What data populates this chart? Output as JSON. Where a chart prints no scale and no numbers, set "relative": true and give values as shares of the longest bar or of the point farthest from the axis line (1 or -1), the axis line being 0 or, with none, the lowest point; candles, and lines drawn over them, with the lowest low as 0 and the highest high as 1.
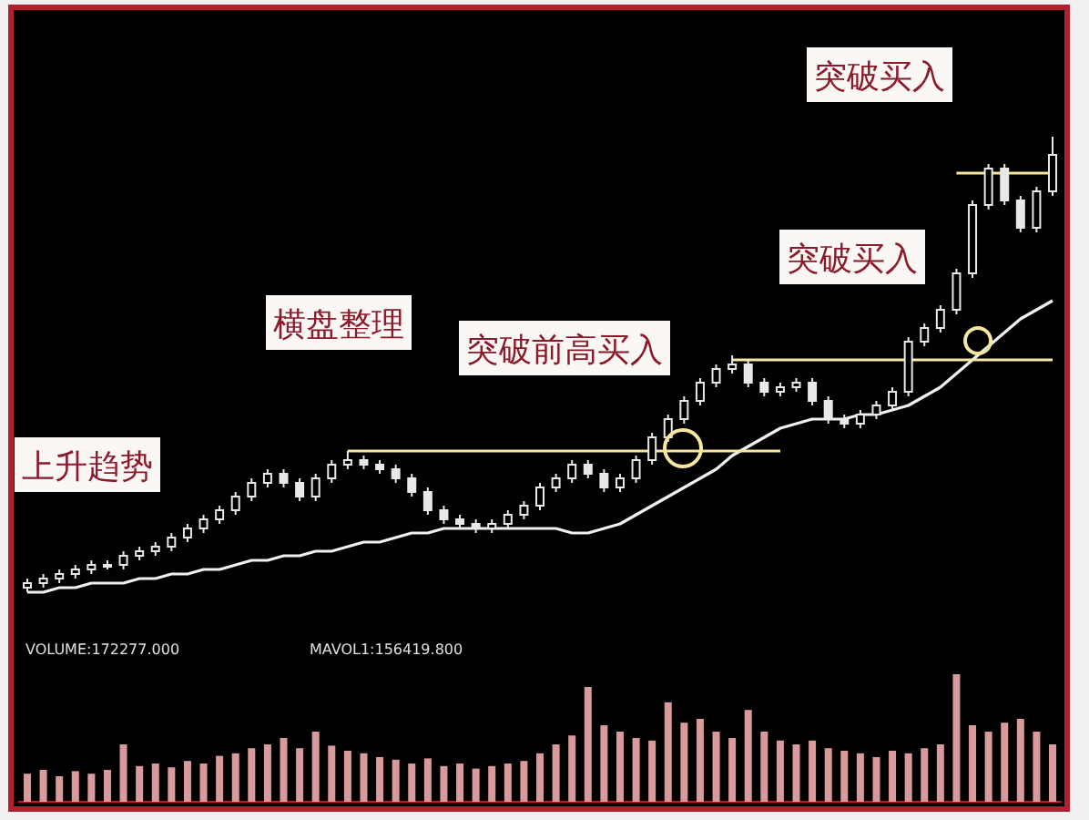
{
  "chart_data": [
    {
      "type": "candlestick",
      "relative": true,
      "color": "#e8e8e8",
      "categories": [
        null,
        null,
        null,
        null,
        null,
        null,
        null,
        null,
        null,
        null,
        null,
        null,
        null,
        null,
        null,
        null,
        null,
        null,
        null,
        null,
        null,
        null,
        null,
        null,
        null,
        null,
        null,
        null,
        null,
        null,
        null,
        null,
        null,
        null,
        null,
        null,
        null,
        null,
        null,
        null,
        null,
        null,
        null,
        null,
        null,
        null,
        null,
        null,
        null,
        null,
        null,
        null,
        null,
        null,
        null,
        null,
        null,
        null,
        null,
        null,
        null,
        null,
        null,
        null,
        null
      ],
      "ohlc": [
        [
          0.01,
          0.03,
          0.0,
          0.02
        ],
        [
          0.02,
          0.04,
          0.01,
          0.03
        ],
        [
          0.03,
          0.05,
          0.02,
          0.04
        ],
        [
          0.04,
          0.06,
          0.03,
          0.05
        ],
        [
          0.05,
          0.07,
          0.04,
          0.06
        ],
        [
          0.06,
          0.07,
          0.05,
          0.06
        ],
        [
          0.06,
          0.09,
          0.05,
          0.08
        ],
        [
          0.08,
          0.1,
          0.07,
          0.09
        ],
        [
          0.09,
          0.11,
          0.08,
          0.1
        ],
        [
          0.1,
          0.13,
          0.09,
          0.12
        ],
        [
          0.12,
          0.15,
          0.11,
          0.14
        ],
        [
          0.14,
          0.17,
          0.13,
          0.16
        ],
        [
          0.16,
          0.19,
          0.15,
          0.18
        ],
        [
          0.18,
          0.22,
          0.17,
          0.21
        ],
        [
          0.21,
          0.25,
          0.2,
          0.24
        ],
        [
          0.24,
          0.27,
          0.23,
          0.26
        ],
        [
          0.26,
          0.27,
          0.23,
          0.24
        ],
        [
          0.24,
          0.25,
          0.2,
          0.21
        ],
        [
          0.21,
          0.26,
          0.2,
          0.25
        ],
        [
          0.25,
          0.29,
          0.24,
          0.28
        ],
        [
          0.28,
          0.31,
          0.27,
          0.29
        ],
        [
          0.29,
          0.3,
          0.27,
          0.28
        ],
        [
          0.28,
          0.29,
          0.26,
          0.27
        ],
        [
          0.27,
          0.28,
          0.24,
          0.25
        ],
        [
          0.25,
          0.26,
          0.21,
          0.22
        ],
        [
          0.22,
          0.23,
          0.17,
          0.18
        ],
        [
          0.18,
          0.19,
          0.15,
          0.16
        ],
        [
          0.16,
          0.17,
          0.14,
          0.15
        ],
        [
          0.15,
          0.16,
          0.13,
          0.14
        ],
        [
          0.14,
          0.16,
          0.13,
          0.15
        ],
        [
          0.15,
          0.18,
          0.14,
          0.17
        ],
        [
          0.17,
          0.2,
          0.16,
          0.19
        ],
        [
          0.19,
          0.24,
          0.18,
          0.23
        ],
        [
          0.23,
          0.26,
          0.22,
          0.25
        ],
        [
          0.25,
          0.29,
          0.24,
          0.28
        ],
        [
          0.28,
          0.29,
          0.25,
          0.26
        ],
        [
          0.26,
          0.27,
          0.22,
          0.23
        ],
        [
          0.23,
          0.26,
          0.22,
          0.25
        ],
        [
          0.25,
          0.3,
          0.24,
          0.29
        ],
        [
          0.29,
          0.35,
          0.28,
          0.34
        ],
        [
          0.34,
          0.39,
          0.33,
          0.38
        ],
        [
          0.38,
          0.43,
          0.37,
          0.42
        ],
        [
          0.42,
          0.47,
          0.41,
          0.46
        ],
        [
          0.46,
          0.5,
          0.45,
          0.49
        ],
        [
          0.49,
          0.52,
          0.48,
          0.5
        ],
        [
          0.5,
          0.51,
          0.45,
          0.46
        ],
        [
          0.46,
          0.47,
          0.43,
          0.44
        ],
        [
          0.44,
          0.46,
          0.43,
          0.45
        ],
        [
          0.45,
          0.47,
          0.44,
          0.46
        ],
        [
          0.46,
          0.47,
          0.41,
          0.42
        ],
        [
          0.42,
          0.43,
          0.37,
          0.38
        ],
        [
          0.38,
          0.39,
          0.36,
          0.37
        ],
        [
          0.37,
          0.4,
          0.36,
          0.39
        ],
        [
          0.39,
          0.42,
          0.38,
          0.41
        ],
        [
          0.41,
          0.45,
          0.4,
          0.44
        ],
        [
          0.44,
          0.56,
          0.43,
          0.55
        ],
        [
          0.55,
          0.59,
          0.54,
          0.58
        ],
        [
          0.58,
          0.63,
          0.57,
          0.62
        ],
        [
          0.62,
          0.71,
          0.61,
          0.7
        ],
        [
          0.7,
          0.86,
          0.69,
          0.85
        ],
        [
          0.85,
          0.94,
          0.84,
          0.93
        ],
        [
          0.93,
          0.94,
          0.85,
          0.86
        ],
        [
          0.86,
          0.87,
          0.79,
          0.8
        ],
        [
          0.8,
          0.89,
          0.79,
          0.88
        ],
        [
          0.88,
          1.0,
          0.87,
          0.96
        ]
      ],
      "series": [
        {
          "type": "line",
          "color": "#f0f0f0",
          "values": [
            0.0,
            0.0,
            0.01,
            0.01,
            0.02,
            0.02,
            0.02,
            0.03,
            0.03,
            0.04,
            0.04,
            0.05,
            0.05,
            0.06,
            0.07,
            0.07,
            0.08,
            0.08,
            0.09,
            0.09,
            0.1,
            0.11,
            0.11,
            0.12,
            0.13,
            0.13,
            0.14,
            0.14,
            0.14,
            0.14,
            0.14,
            0.14,
            0.14,
            0.14,
            0.13,
            0.13,
            0.14,
            0.15,
            0.17,
            0.19,
            0.21,
            0.23,
            0.25,
            0.27,
            0.3,
            0.32,
            0.34,
            0.36,
            0.37,
            0.38,
            0.38,
            0.38,
            0.39,
            0.39,
            0.4,
            0.41,
            0.43,
            0.45,
            0.48,
            0.51,
            0.54,
            0.57,
            0.6,
            0.62,
            0.64
          ]
        },
        {
          "type": "line",
          "color": "#f5e6a0",
          "values": [
            null,
            null,
            null,
            null,
            null,
            null,
            null,
            null,
            null,
            null,
            null,
            null,
            null,
            null,
            null,
            null,
            null,
            null,
            null,
            null,
            0.31,
            0.31,
            0.31,
            0.31,
            0.31,
            0.31,
            0.31,
            0.31,
            0.31,
            0.31,
            0.31,
            0.31,
            0.31,
            0.31,
            0.31,
            0.31,
            0.31,
            0.31,
            0.31,
            0.31,
            0.31,
            0.31,
            0.31,
            0.31,
            0.31,
            0.31,
            0.31,
            0.31,
            null,
            null,
            null,
            null,
            null,
            null,
            null,
            null,
            null,
            null,
            null,
            null,
            null,
            null,
            null,
            null,
            null
          ]
        },
        {
          "type": "line",
          "color": "#f5e6a0",
          "values": [
            null,
            null,
            null,
            null,
            null,
            null,
            null,
            null,
            null,
            null,
            null,
            null,
            null,
            null,
            null,
            null,
            null,
            null,
            null,
            null,
            null,
            null,
            null,
            null,
            null,
            null,
            null,
            null,
            null,
            null,
            null,
            null,
            null,
            null,
            null,
            null,
            null,
            null,
            null,
            null,
            null,
            null,
            null,
            null,
            0.51,
            0.51,
            0.51,
            0.51,
            0.51,
            0.51,
            0.51,
            0.51,
            0.51,
            0.51,
            0.51,
            0.51,
            0.51,
            0.51,
            0.51,
            0.51,
            0.51,
            0.51,
            0.51,
            0.51,
            0.51
          ]
        },
        {
          "type": "line",
          "color": "#f5e6a0",
          "values": [
            null,
            null,
            null,
            null,
            null,
            null,
            null,
            null,
            null,
            null,
            null,
            null,
            null,
            null,
            null,
            null,
            null,
            null,
            null,
            null,
            null,
            null,
            null,
            null,
            null,
            null,
            null,
            null,
            null,
            null,
            null,
            null,
            null,
            null,
            null,
            null,
            null,
            null,
            null,
            null,
            null,
            null,
            null,
            null,
            null,
            null,
            null,
            null,
            null,
            null,
            null,
            null,
            null,
            null,
            null,
            null,
            null,
            null,
            0.92,
            0.92,
            0.92,
            0.92,
            0.92,
            0.92,
            0.92
          ]
        }
      ],
      "annotations": [
        "上升趋势",
        "横盘整理",
        "突破前高买入",
        "突破买入",
        "突破买入"
      ]
    },
    {
      "type": "bar",
      "relative": true,
      "color": "#d89a9a",
      "categories": [
        null,
        null,
        null,
        null,
        null,
        null,
        null,
        null,
        null,
        null,
        null,
        null,
        null,
        null,
        null,
        null,
        null,
        null,
        null,
        null,
        null,
        null,
        null,
        null,
        null,
        null,
        null,
        null,
        null,
        null,
        null,
        null,
        null,
        null,
        null,
        null,
        null,
        null,
        null,
        null,
        null,
        null,
        null,
        null,
        null,
        null,
        null,
        null,
        null,
        null,
        null,
        null,
        null,
        null,
        null,
        null,
        null,
        null,
        null,
        null,
        null,
        null,
        null,
        null,
        null
      ],
      "values": [
        0.22,
        0.25,
        0.2,
        0.24,
        0.22,
        0.25,
        0.45,
        0.28,
        0.3,
        0.27,
        0.32,
        0.3,
        0.36,
        0.38,
        0.42,
        0.45,
        0.5,
        0.42,
        0.55,
        0.44,
        0.4,
        0.38,
        0.35,
        0.33,
        0.3,
        0.34,
        0.28,
        0.3,
        0.26,
        0.28,
        0.3,
        0.32,
        0.38,
        0.45,
        0.52,
        0.9,
        0.6,
        0.55,
        0.5,
        0.48,
        0.78,
        0.62,
        0.65,
        0.55,
        0.5,
        0.72,
        0.55,
        0.48,
        0.45,
        0.48,
        0.42,
        0.4,
        0.38,
        0.35,
        0.4,
        0.38,
        0.42,
        0.45,
        1.0,
        0.6,
        0.55,
        0.62,
        0.65,
        0.55,
        0.45
      ],
      "annotations": [
        "VOLUME:172277.000",
        "MAVOL1:156419.800"
      ]
    }
  ]
}
